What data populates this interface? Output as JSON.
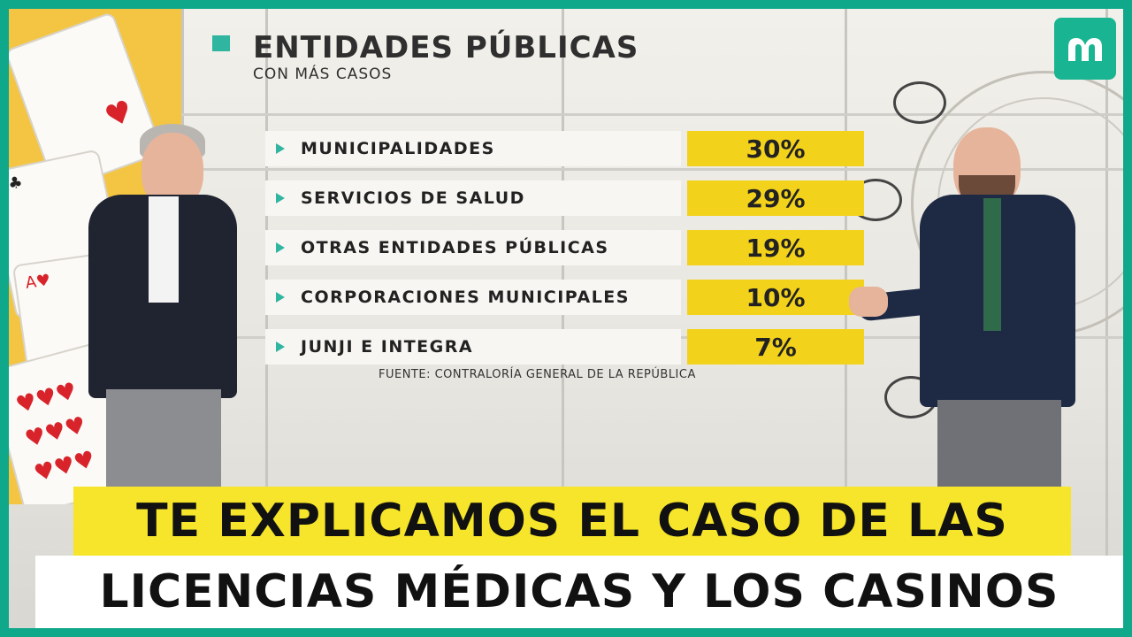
{
  "board": {
    "title": "ENTIDADES PÚBLICAS",
    "subtitle": "CON MÁS CASOS",
    "source": "FUENTE: CONTRALORÍA GENERAL DE LA REPÚBLICA",
    "rows": [
      {
        "label": "MUNICIPALIDADES",
        "value": "30%"
      },
      {
        "label": "SERVICIOS DE SALUD",
        "value": "29%"
      },
      {
        "label": "OTRAS ENTIDADES PÚBLICAS",
        "value": "19%"
      },
      {
        "label": "CORPORACIONES MUNICIPALES",
        "value": "10%"
      },
      {
        "label": "JUNJI E INTEGRA",
        "value": "7%"
      }
    ]
  },
  "caption": {
    "line1": "TE EXPLICAMOS EL CASO DE LAS",
    "line2": "LICENCIAS MÉDICAS Y LOS CASINOS"
  },
  "colors": {
    "accent_teal": "#2fb5a0",
    "highlight_yellow": "#f3d21b",
    "caption_yellow": "#f6e52a",
    "frame_green": "#0fa88a"
  },
  "icons": {
    "channel_logo": "mega-logo-icon",
    "row_marker": "triangle-bullet-icon"
  }
}
